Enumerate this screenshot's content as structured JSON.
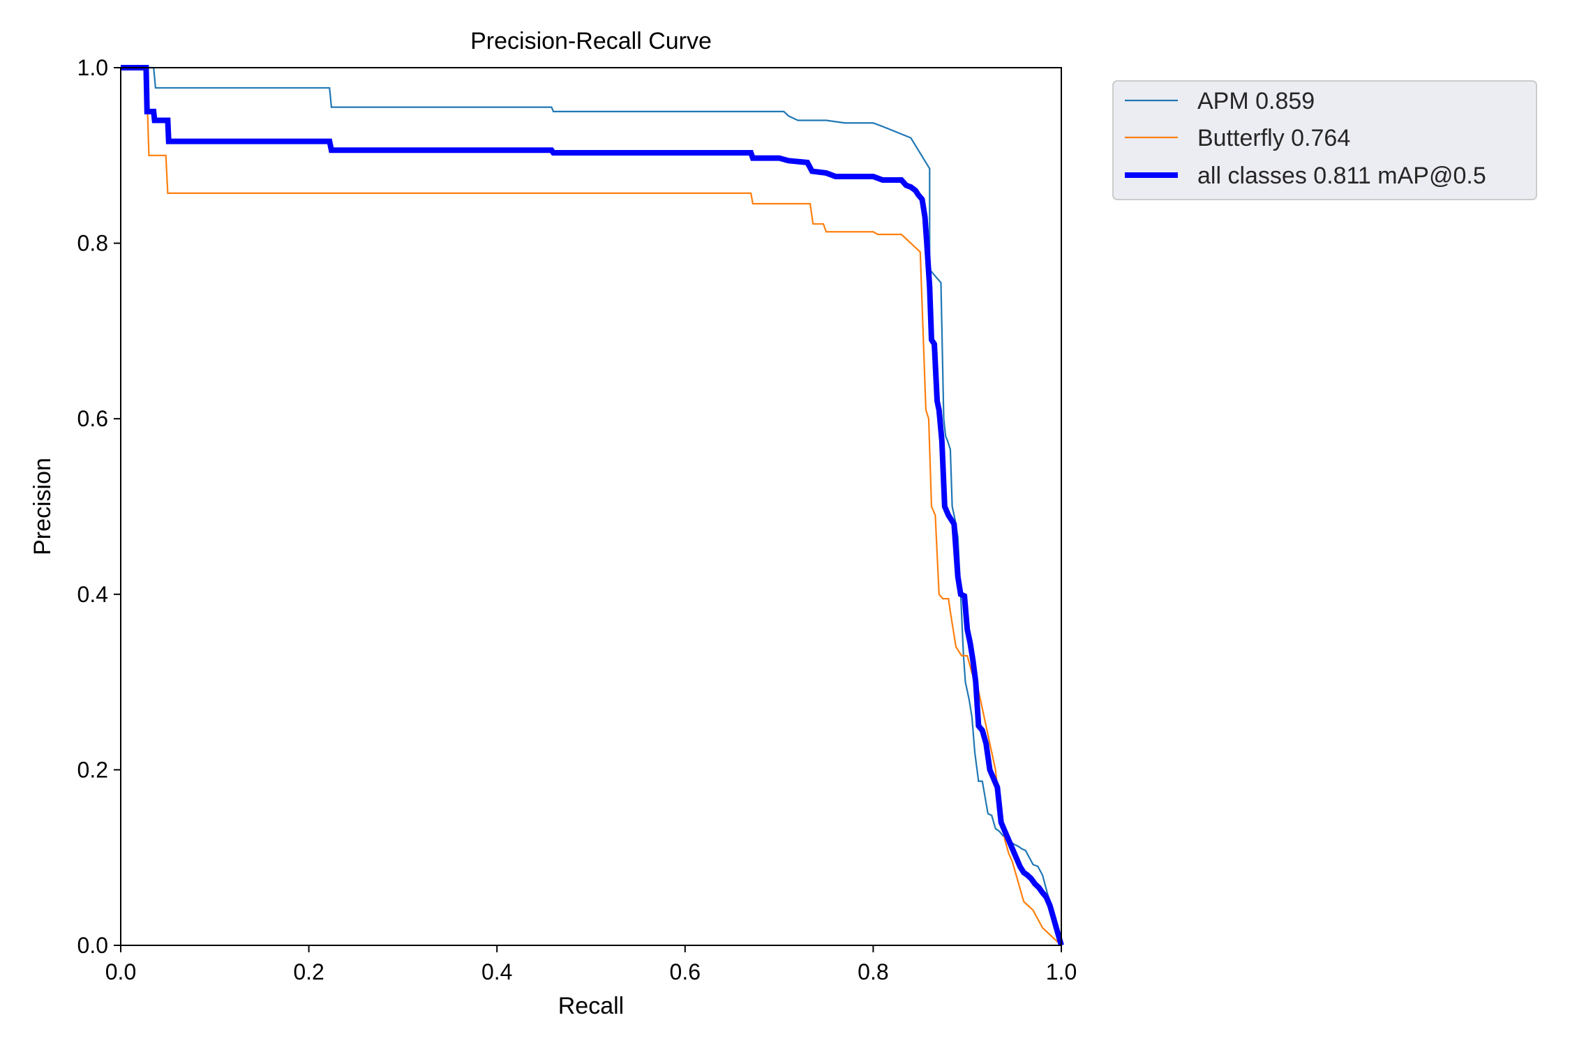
{
  "chart_data": {
    "type": "line",
    "title": "Precision-Recall Curve",
    "xlabel": "Recall",
    "ylabel": "Precision",
    "xlim": [
      0,
      1
    ],
    "ylim": [
      0,
      1
    ],
    "x_ticks": [
      "0.0",
      "0.2",
      "0.4",
      "0.6",
      "0.8",
      "1.0"
    ],
    "y_ticks": [
      "0.0",
      "0.2",
      "0.4",
      "0.6",
      "0.8",
      "1.0"
    ],
    "grid": false,
    "legend_placement": "outside-top-right",
    "series": [
      {
        "name": "APM 0.859",
        "color": "#1f77b4",
        "width": "thin",
        "x": [
          0.0,
          0.035,
          0.037,
          0.222,
          0.224,
          0.458,
          0.46,
          0.705,
          0.71,
          0.72,
          0.75,
          0.77,
          0.8,
          0.81,
          0.84,
          0.86,
          0.86,
          0.868,
          0.872,
          0.875,
          0.877,
          0.879,
          0.882,
          0.884,
          0.887,
          0.89,
          0.893,
          0.896,
          0.898,
          0.902,
          0.905,
          0.908,
          0.912,
          0.916,
          0.922,
          0.926,
          0.93,
          0.934,
          0.938,
          0.942,
          0.946,
          0.95,
          0.954,
          0.958,
          0.962,
          0.966,
          0.97,
          0.975,
          0.98,
          0.985,
          0.99,
          1.0
        ],
        "y": [
          1.0,
          1.0,
          0.977,
          0.977,
          0.955,
          0.955,
          0.95,
          0.95,
          0.945,
          0.94,
          0.94,
          0.937,
          0.937,
          0.933,
          0.92,
          0.885,
          0.77,
          0.76,
          0.755,
          0.6,
          0.58,
          0.575,
          0.565,
          0.5,
          0.485,
          0.465,
          0.4,
          0.33,
          0.3,
          0.28,
          0.26,
          0.22,
          0.187,
          0.187,
          0.15,
          0.148,
          0.133,
          0.13,
          0.125,
          0.122,
          0.118,
          0.115,
          0.113,
          0.11,
          0.108,
          0.1,
          0.092,
          0.09,
          0.08,
          0.06,
          0.04,
          0.0
        ]
      },
      {
        "name": "Butterfly 0.764",
        "color": "#ff7f0e",
        "width": "thin",
        "x": [
          0.0,
          0.027,
          0.03,
          0.048,
          0.05,
          0.67,
          0.672,
          0.733,
          0.736,
          0.747,
          0.75,
          0.8,
          0.805,
          0.83,
          0.84,
          0.845,
          0.85,
          0.853,
          0.856,
          0.859,
          0.862,
          0.866,
          0.87,
          0.874,
          0.88,
          0.882,
          0.885,
          0.888,
          0.894,
          0.9,
          0.905,
          0.91,
          0.914,
          0.918,
          0.922,
          0.926,
          0.93,
          0.933,
          0.937,
          0.94,
          0.944,
          0.948,
          0.952,
          0.96,
          0.97,
          0.98,
          0.99,
          1.0
        ],
        "y": [
          1.0,
          1.0,
          0.9,
          0.9,
          0.857,
          0.857,
          0.845,
          0.845,
          0.822,
          0.822,
          0.813,
          0.813,
          0.81,
          0.81,
          0.8,
          0.795,
          0.79,
          0.7,
          0.61,
          0.6,
          0.5,
          0.49,
          0.4,
          0.395,
          0.395,
          0.38,
          0.36,
          0.34,
          0.33,
          0.33,
          0.31,
          0.3,
          0.28,
          0.26,
          0.24,
          0.22,
          0.2,
          0.17,
          0.14,
          0.12,
          0.105,
          0.095,
          0.08,
          0.05,
          0.04,
          0.02,
          0.01,
          0.0
        ]
      },
      {
        "name": "all classes 0.811 mAP@0.5",
        "color": "#0000ff",
        "width": "thick",
        "x": [
          0.0,
          0.027,
          0.028,
          0.035,
          0.036,
          0.05,
          0.051,
          0.222,
          0.224,
          0.458,
          0.46,
          0.67,
          0.672,
          0.7,
          0.71,
          0.73,
          0.735,
          0.75,
          0.76,
          0.78,
          0.8,
          0.81,
          0.83,
          0.835,
          0.84,
          0.845,
          0.848,
          0.852,
          0.855,
          0.857,
          0.86,
          0.862,
          0.865,
          0.868,
          0.87,
          0.873,
          0.876,
          0.88,
          0.883,
          0.886,
          0.89,
          0.893,
          0.897,
          0.9,
          0.903,
          0.906,
          0.909,
          0.912,
          0.916,
          0.92,
          0.924,
          0.928,
          0.932,
          0.936,
          0.94,
          0.944,
          0.948,
          0.952,
          0.956,
          0.96,
          0.964,
          0.968,
          0.972,
          0.976,
          0.98,
          0.984,
          0.988,
          0.992,
          0.996,
          1.0
        ],
        "y": [
          1.0,
          1.0,
          0.95,
          0.95,
          0.94,
          0.94,
          0.916,
          0.916,
          0.906,
          0.906,
          0.903,
          0.903,
          0.897,
          0.897,
          0.894,
          0.892,
          0.882,
          0.88,
          0.876,
          0.876,
          0.876,
          0.872,
          0.872,
          0.866,
          0.864,
          0.86,
          0.855,
          0.85,
          0.83,
          0.8,
          0.75,
          0.69,
          0.685,
          0.62,
          0.61,
          0.575,
          0.5,
          0.49,
          0.485,
          0.48,
          0.42,
          0.4,
          0.398,
          0.36,
          0.345,
          0.325,
          0.3,
          0.25,
          0.245,
          0.23,
          0.2,
          0.19,
          0.18,
          0.14,
          0.13,
          0.12,
          0.11,
          0.1,
          0.09,
          0.083,
          0.08,
          0.076,
          0.07,
          0.066,
          0.06,
          0.055,
          0.045,
          0.03,
          0.015,
          0.0
        ]
      }
    ]
  }
}
